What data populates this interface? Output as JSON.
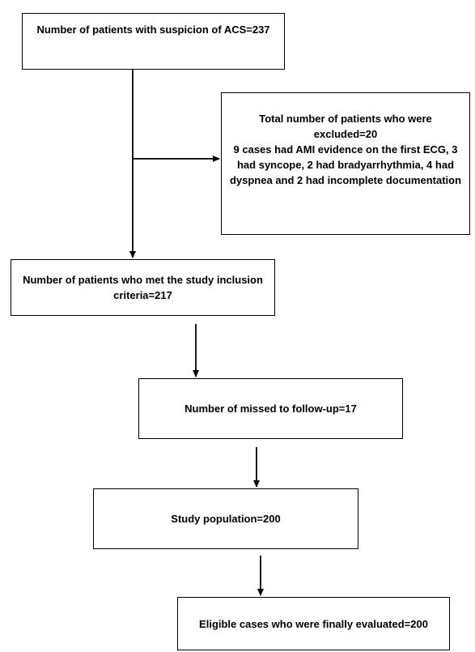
{
  "nodes": {
    "suspected": {
      "text": "Number of patients with suspicion of ACS=237"
    },
    "excluded": {
      "title": "Total number of patients who were excluded=20",
      "detail": "9 cases had AMI evidence on the first ECG, 3 had syncope, 2 had bradyarrhythmia, 4 had dyspnea and 2 had incomplete documentation"
    },
    "inclusion": {
      "text": "Number of patients who met the study inclusion criteria=217"
    },
    "missed": {
      "text": "Number of missed to follow-up=17"
    },
    "population": {
      "text": "Study population=200"
    },
    "eligible": {
      "text": "Eligible cases who were finally evaluated=200"
    }
  },
  "edges": [
    {
      "from": "suspected",
      "to": "inclusion"
    },
    {
      "from": "suspected",
      "to": "excluded"
    },
    {
      "from": "inclusion",
      "to": "missed"
    },
    {
      "from": "missed",
      "to": "population"
    },
    {
      "from": "population",
      "to": "eligible"
    }
  ]
}
